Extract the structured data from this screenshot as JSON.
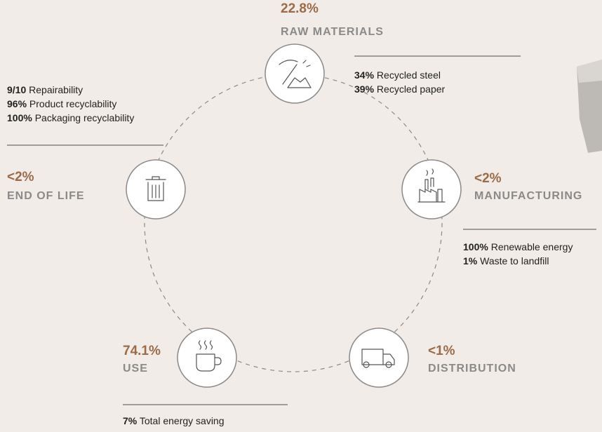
{
  "nodes": [
    {
      "percent": "22.8%",
      "label": "RAW MATERIALS",
      "stats": [
        {
          "value": "34%",
          "text": "Recycled steel"
        },
        {
          "value": "39%",
          "text": "Recycled paper"
        }
      ]
    },
    {
      "percent": "<2%",
      "label": "MANUFACTURING",
      "stats": [
        {
          "value": "100%",
          "text": "Renewable energy"
        },
        {
          "value": "1%",
          "text": "Waste to landfill"
        }
      ]
    },
    {
      "percent": "<1%",
      "label": "DISTRIBUTION",
      "stats": []
    },
    {
      "percent": "74.1%",
      "label": "USE",
      "stats": [
        {
          "value": "7%",
          "text": "Total energy saving"
        }
      ]
    },
    {
      "percent": "<2%",
      "label": "END OF LIFE",
      "stats": [
        {
          "value": "9/10",
          "text": "Repairability"
        },
        {
          "value": "96%",
          "text": "Product recyclability"
        },
        {
          "value": "100%",
          "text": "Packaging recyclability"
        }
      ]
    }
  ]
}
